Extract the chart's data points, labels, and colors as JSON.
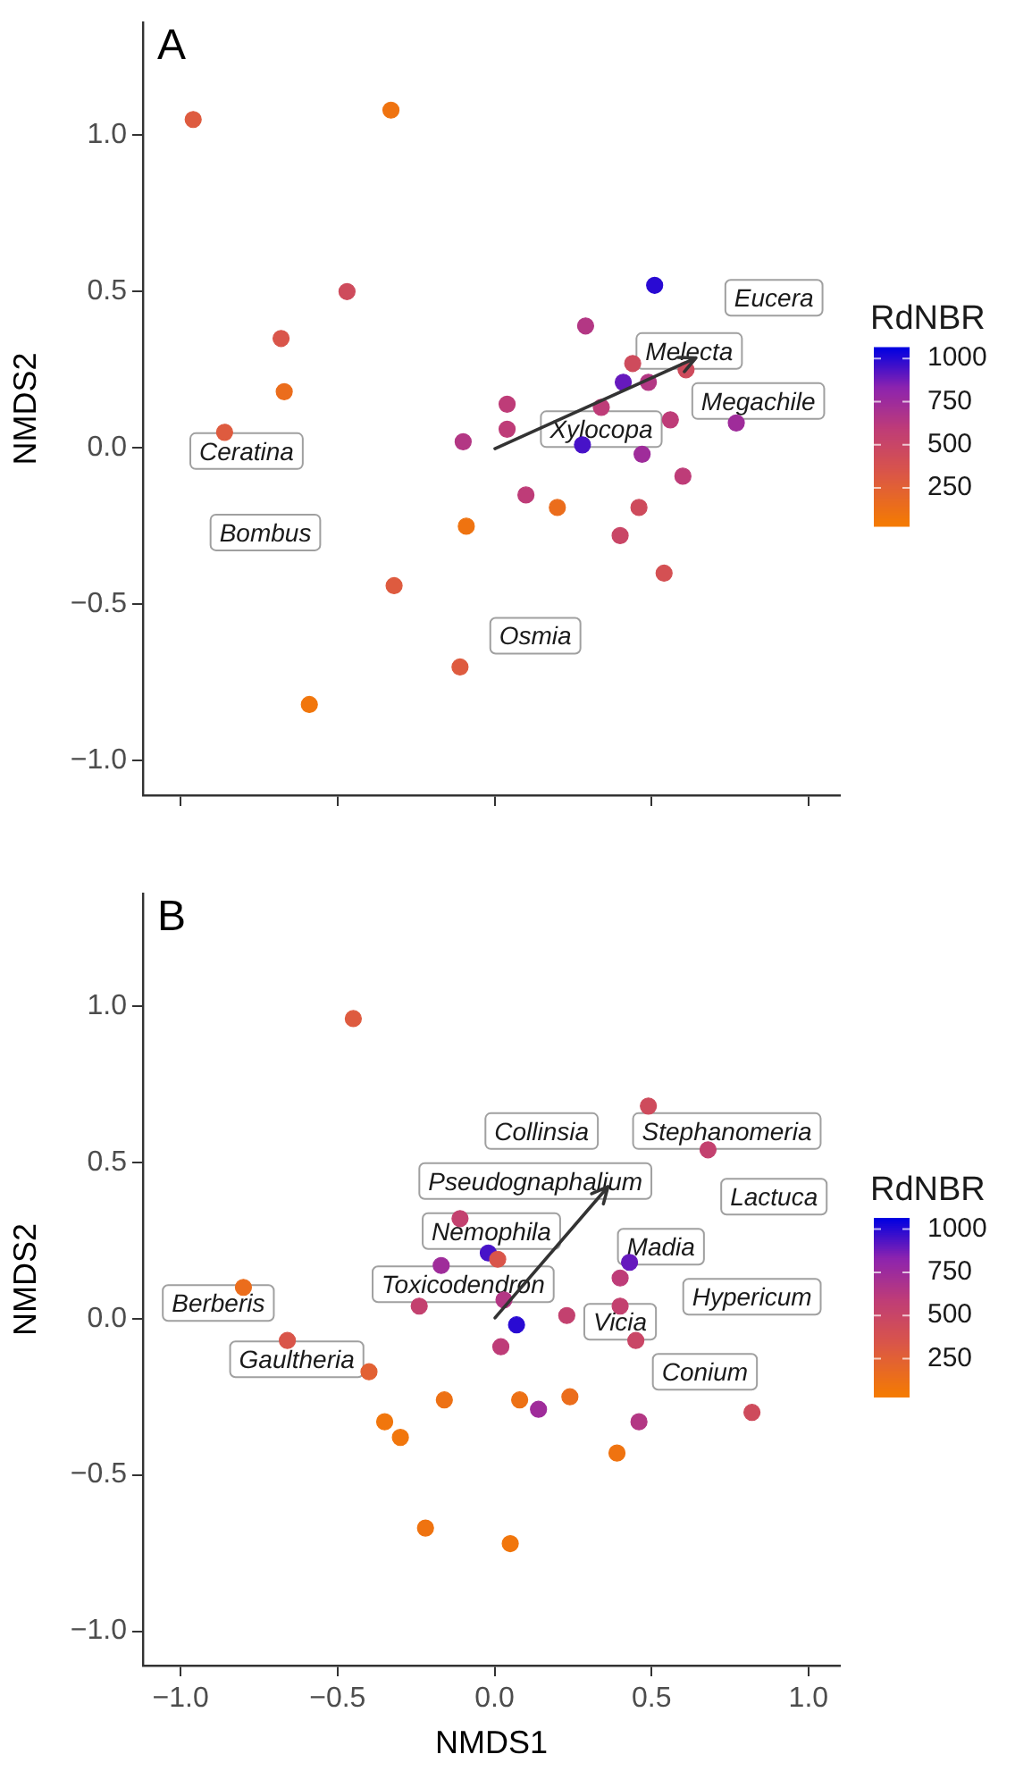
{
  "chart_data": [
    {
      "type": "scatter",
      "title": "A",
      "ylabel": "NMDS2",
      "clabel": "RdNBR",
      "clim": [
        30,
        1066
      ],
      "cticks": [
        250,
        500,
        750,
        1000
      ],
      "tick_labels": "y",
      "marker": "circle",
      "xlim": [
        -1.12,
        1.1
      ],
      "ylim": [
        -1.11,
        1.36
      ],
      "xticks": [
        -1.0,
        -0.5,
        0.0,
        0.5,
        1.0
      ],
      "yticks": [
        {
          "value": -1,
          "label": "−1.0"
        },
        {
          "value": -0.5,
          "label": "−0.5"
        },
        {
          "value": 0,
          "label": "0.0"
        },
        {
          "value": 0.5,
          "label": "0.5"
        },
        {
          "value": 1,
          "label": "1.0"
        }
      ],
      "series": [
        {
          "x": [
            -0.96,
            -0.33,
            -0.47,
            -0.68,
            -0.67,
            -0.86,
            -0.1,
            0.04,
            0.04,
            0.1,
            0.2,
            -0.09,
            -0.32,
            -0.11,
            -0.59,
            0.29,
            0.51,
            0.44,
            0.41,
            0.49,
            0.34,
            0.56,
            0.61,
            0.28,
            0.47,
            0.6,
            0.46,
            0.4,
            0.54,
            0.77
          ],
          "values": [
            1.05,
            1.08,
            0.5,
            0.35,
            0.18,
            0.05,
            0.02,
            0.14,
            0.06,
            -0.15,
            -0.19,
            -0.25,
            -0.44,
            -0.7,
            -0.82,
            0.39,
            0.52,
            0.27,
            0.21,
            0.21,
            0.13,
            0.09,
            0.25,
            0.01,
            -0.02,
            -0.09,
            -0.19,
            -0.28,
            -0.4,
            0.08
          ],
          "cvalues": [
            300,
            100,
            450,
            350,
            150,
            300,
            650,
            600,
            600,
            600,
            150,
            100,
            300,
            300,
            80,
            650,
            1000,
            450,
            900,
            650,
            600,
            600,
            450,
            950,
            750,
            600,
            450,
            500,
            400,
            750
          ],
          "colors": [
            "#de5b3f",
            "#ef7310",
            "#ce4b5c",
            "#d9554a",
            "#eb6d1c",
            "#de5b3f",
            "#b33784",
            "#be3c78",
            "#be3c78",
            "#be3c78",
            "#eb6d1c",
            "#ef7310",
            "#de5b3f",
            "#de5b3f",
            "#f1760c",
            "#b33784",
            "#290ad3",
            "#ce4b5c",
            "#6619bd",
            "#b33784",
            "#be3c78",
            "#be3c78",
            "#ce4b5c",
            "#4712c8",
            "#9f2c9a",
            "#be3c78",
            "#ce4b5c",
            "#c94666",
            "#d45053",
            "#9f2c9a"
          ]
        }
      ],
      "annotations": [
        "Eucera",
        "Melecta",
        "Megachile",
        "Xylocopa",
        "Ceratina",
        "Bombus",
        "Osmia"
      ]
    },
    {
      "type": "scatter",
      "title": "B",
      "xlabel": "NMDS1",
      "ylabel": "NMDS2",
      "clabel": "RdNBR",
      "clim": [
        30,
        1066
      ],
      "cticks": [
        250,
        500,
        750,
        1000
      ],
      "marker": "circle",
      "xlim": [
        -1.12,
        1.1
      ],
      "ylim": [
        -1.11,
        1.36
      ],
      "xticks": [
        {
          "value": -1,
          "label": "−1.0"
        },
        {
          "value": -0.5,
          "label": "−0.5"
        },
        {
          "value": 0,
          "label": "0.0"
        },
        {
          "value": 0.5,
          "label": "0.5"
        },
        {
          "value": 1,
          "label": "1.0"
        }
      ],
      "yticks": [
        {
          "value": -1,
          "label": "−1.0"
        },
        {
          "value": -0.5,
          "label": "−0.5"
        },
        {
          "value": 0,
          "label": "0.0"
        },
        {
          "value": 0.5,
          "label": "0.5"
        },
        {
          "value": 1,
          "label": "1.0"
        }
      ],
      "series": [
        {
          "x": [
            -0.45,
            0.49,
            0.68,
            -0.11,
            -0.02,
            0.01,
            -0.17,
            0.43,
            0.4,
            -0.8,
            -0.24,
            0.03,
            0.23,
            0.4,
            0.07,
            -0.66,
            0.45,
            0.02,
            -0.4,
            -0.16,
            0.08,
            0.24,
            0.14,
            -0.35,
            -0.3,
            0.46,
            0.82,
            0.39,
            -0.22,
            0.05
          ],
          "values": [
            0.96,
            0.68,
            0.54,
            0.32,
            0.21,
            0.19,
            0.17,
            0.18,
            0.13,
            0.1,
            0.04,
            0.06,
            0.01,
            0.04,
            -0.02,
            -0.07,
            -0.07,
            -0.09,
            -0.17,
            -0.26,
            -0.26,
            -0.25,
            -0.29,
            -0.33,
            -0.38,
            -0.33,
            -0.3,
            -0.43,
            -0.67,
            -0.72
          ],
          "cvalues": [
            300,
            450,
            550,
            550,
            950,
            350,
            750,
            900,
            600,
            150,
            550,
            650,
            550,
            550,
            1000,
            350,
            500,
            600,
            250,
            120,
            120,
            150,
            750,
            80,
            80,
            650,
            450,
            100,
            100,
            80
          ],
          "colors": [
            "#de5b3f",
            "#ce4b5c",
            "#c3416f",
            "#c3416f",
            "#4712c8",
            "#d9554a",
            "#9f2c9a",
            "#6619bd",
            "#be3c78",
            "#eb6d1c",
            "#c3416f",
            "#b33784",
            "#c3416f",
            "#c3416f",
            "#290ad3",
            "#d9554a",
            "#c94666",
            "#be3c78",
            "#e26133",
            "#ed7115",
            "#ed7115",
            "#eb6d1c",
            "#9f2c9a",
            "#f1760c",
            "#f1760c",
            "#b33784",
            "#ce4b5c",
            "#ef7310",
            "#ef7310",
            "#f1760c"
          ]
        }
      ],
      "annotations": [
        "Collinsia",
        "Stephanomeria",
        "Pseudognaphalium",
        "Lactuca",
        "Nemophila",
        "Madia",
        "Toxicodendron",
        "Hypericum",
        "Vicia",
        "Berberis",
        "Gaultheria",
        "Conium"
      ]
    }
  ]
}
